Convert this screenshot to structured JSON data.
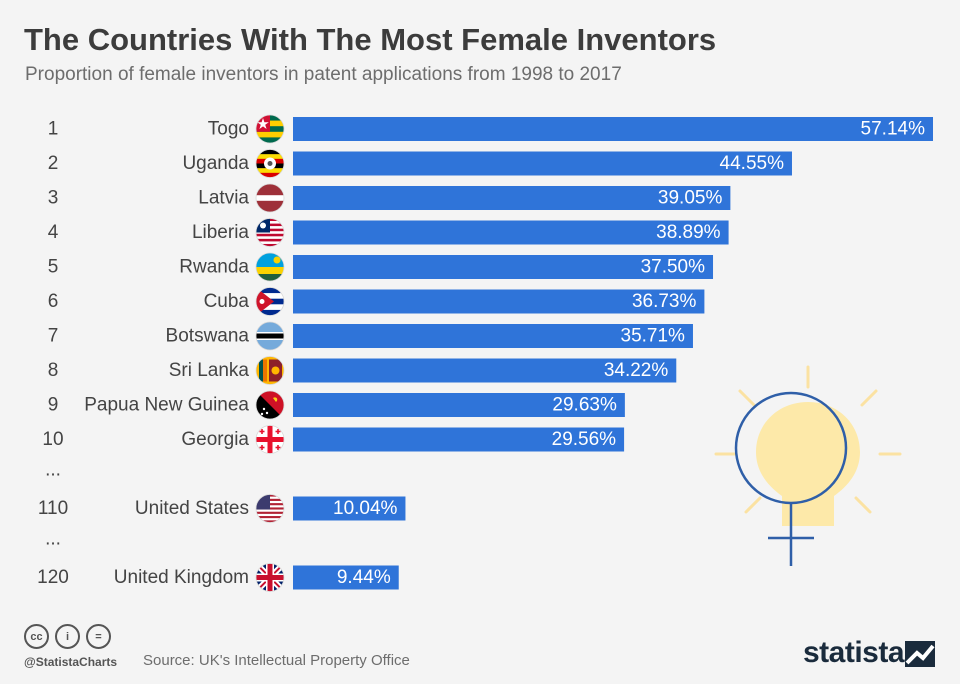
{
  "header": {
    "title": "The Countries With The Most Female Inventors",
    "subtitle": "Proportion of female inventors in patent applications from 1998 to 2017"
  },
  "chart_data": {
    "type": "bar",
    "orientation": "horizontal",
    "title": "The Countries With The Most Female Inventors",
    "subtitle": "Proportion of female inventors in patent applications from 1998 to 2017",
    "bar_color": "#2f74d9",
    "value_label_color": "#ffffff",
    "rows": [
      {
        "kind": "bar",
        "rank": "1",
        "country": "Togo",
        "flag": "togo-flag",
        "value": 57.14,
        "label": "57.14%"
      },
      {
        "kind": "bar",
        "rank": "2",
        "country": "Uganda",
        "flag": "uganda-flag",
        "value": 44.55,
        "label": "44.55%"
      },
      {
        "kind": "bar",
        "rank": "3",
        "country": "Latvia",
        "flag": "latvia-flag",
        "value": 39.05,
        "label": "39.05%"
      },
      {
        "kind": "bar",
        "rank": "4",
        "country": "Liberia",
        "flag": "liberia-flag",
        "value": 38.89,
        "label": "38.89%"
      },
      {
        "kind": "bar",
        "rank": "5",
        "country": "Rwanda",
        "flag": "rwanda-flag",
        "value": 37.5,
        "label": "37.50%"
      },
      {
        "kind": "bar",
        "rank": "6",
        "country": "Cuba",
        "flag": "cuba-flag",
        "value": 36.73,
        "label": "36.73%"
      },
      {
        "kind": "bar",
        "rank": "7",
        "country": "Botswana",
        "flag": "botswana-flag",
        "value": 35.71,
        "label": "35.71%"
      },
      {
        "kind": "bar",
        "rank": "8",
        "country": "Sri Lanka",
        "flag": "sri-lanka-flag",
        "value": 34.22,
        "label": "34.22%"
      },
      {
        "kind": "bar",
        "rank": "9",
        "country": "Papua New Guinea",
        "flag": "papua-new-guinea-flag",
        "value": 29.63,
        "label": "29.63%"
      },
      {
        "kind": "bar",
        "rank": "10",
        "country": "Georgia",
        "flag": "georgia-flag",
        "value": 29.56,
        "label": "29.56%"
      },
      {
        "kind": "gap",
        "rank": "..."
      },
      {
        "kind": "bar",
        "rank": "110",
        "country": "United States",
        "flag": "us-flag",
        "value": 10.04,
        "label": "10.04%"
      },
      {
        "kind": "gap",
        "rank": "..."
      },
      {
        "kind": "bar",
        "rank": "120",
        "country": "United Kingdom",
        "flag": "uk-flag",
        "value": 9.44,
        "label": "9.44%"
      }
    ],
    "xlim": [
      0,
      57.14
    ],
    "grid": false,
    "legend": "none"
  },
  "illustration": {
    "name": "female-symbol-lightbulb-icon",
    "bulb_color": "#fde9a9",
    "line_color": "#2f5fa8",
    "ray_color": "#fbe2a2"
  },
  "footer": {
    "cc_icons": [
      "cc",
      "i",
      "="
    ],
    "handle": "@StatistaCharts",
    "source": "Source: UK's Intellectual Property Office",
    "logo": "statista"
  }
}
